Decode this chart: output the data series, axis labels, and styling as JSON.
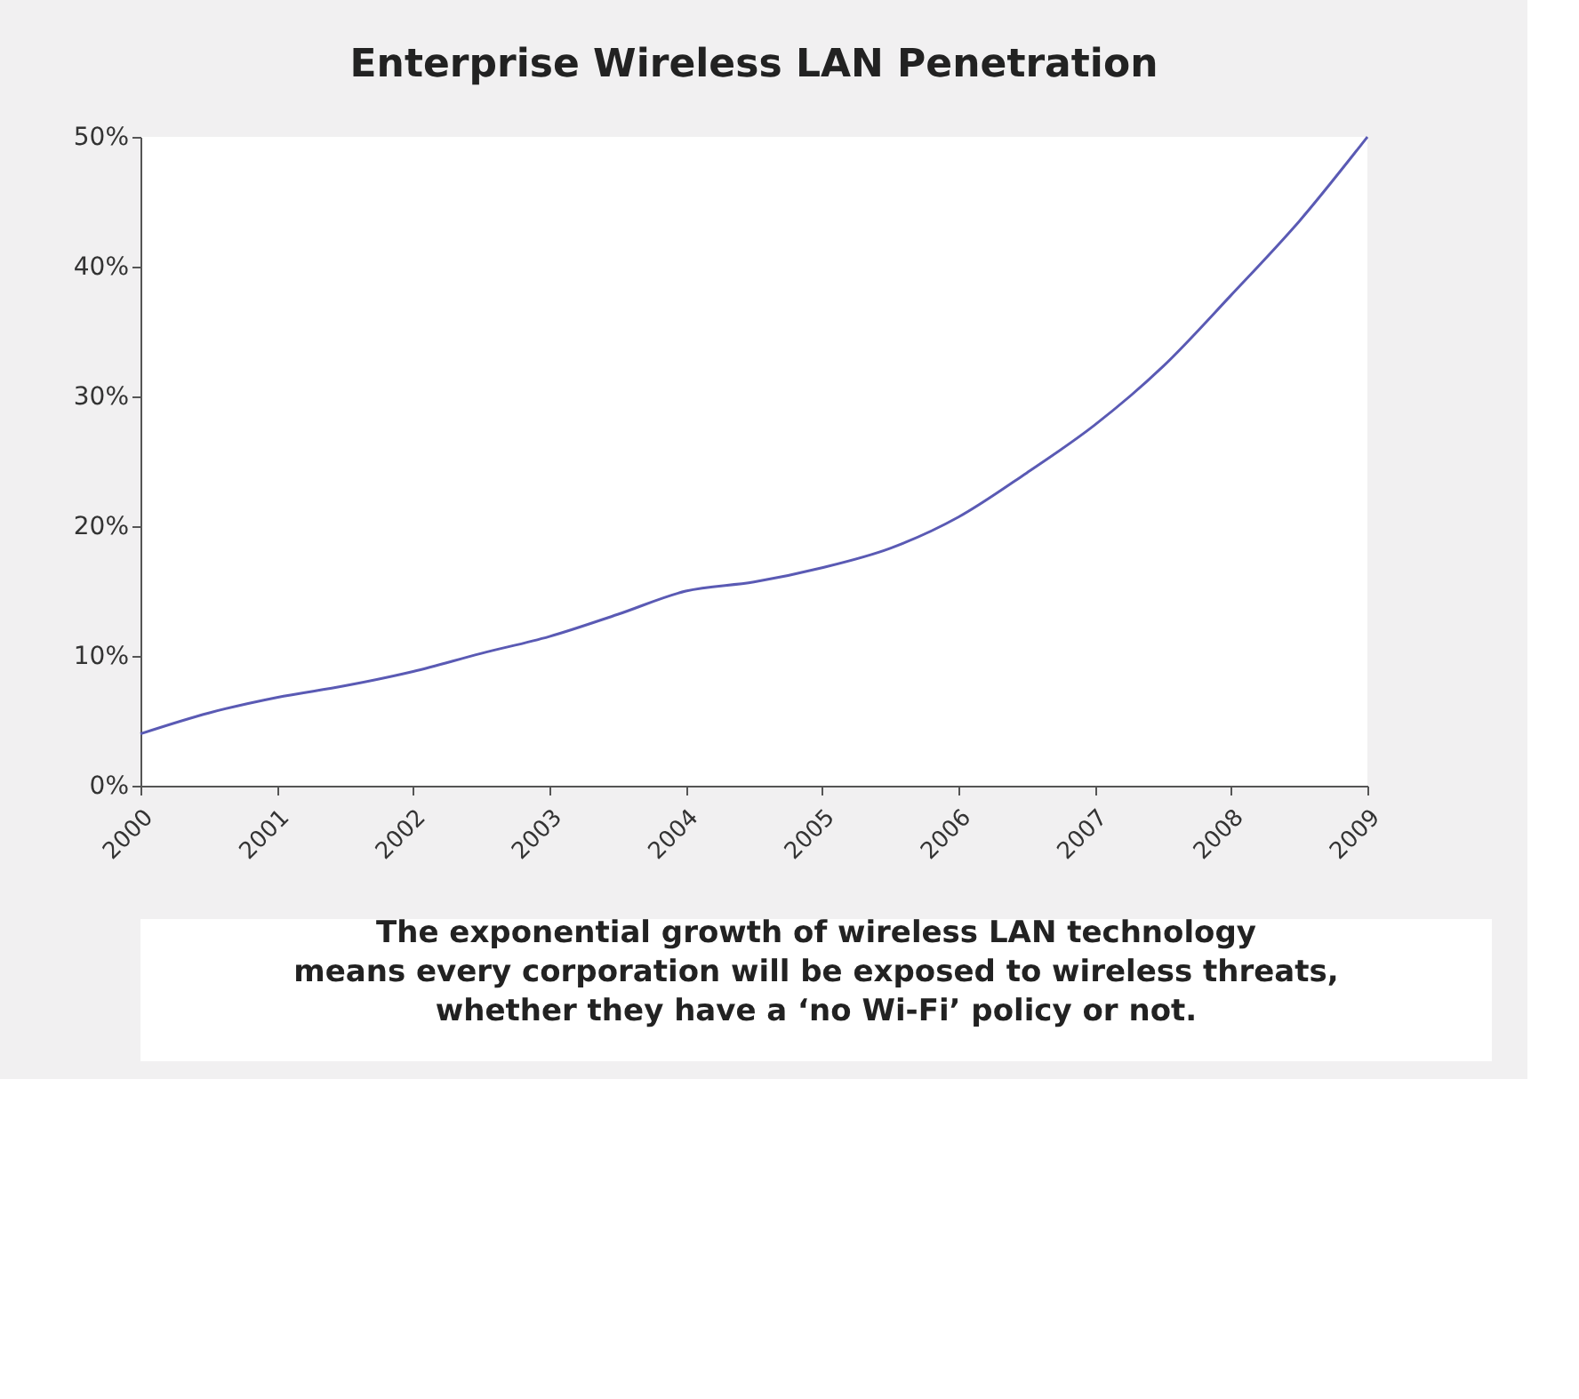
{
  "chart_data": {
    "type": "line",
    "title": "Enterprise Wireless LAN Penetration",
    "annotations": [
      "The exponential growth of wireless LAN technology\nmeans every corporation will be exposed to wireless threats,\nwhether they have a ‘no Wi-Fi’ policy or not."
    ],
    "series": [
      {
        "color": "#5a5ab4",
        "x": [
          2000,
          2000.5,
          2001,
          2001.5,
          2002,
          2002.5,
          2003,
          2003.5,
          2004,
          2004.5,
          2005,
          2005.5,
          2006,
          2006.5,
          2007,
          2007.5,
          2008,
          2008.5,
          2009
        ],
        "values": [
          4.0,
          5.6,
          6.8,
          7.7,
          8.8,
          10.2,
          11.5,
          13.2,
          15.0,
          15.7,
          16.8,
          18.3,
          20.7,
          24.1,
          27.8,
          32.3,
          37.8,
          43.5,
          50.0
        ]
      }
    ],
    "xlim": [
      2000,
      2009
    ],
    "xticks": [
      2000,
      2001,
      2002,
      2003,
      2004,
      2005,
      2006,
      2007,
      2008,
      2009
    ],
    "ylim": [
      0,
      50
    ],
    "yticks": [
      {
        "value": 0,
        "label": "0%"
      },
      {
        "value": 10,
        "label": "10%"
      },
      {
        "value": 20,
        "label": "20%"
      },
      {
        "value": 30,
        "label": "30%"
      },
      {
        "value": 40,
        "label": "40%"
      },
      {
        "value": 50,
        "label": "50%"
      }
    ],
    "grid": false,
    "legend": false,
    "marker": "none",
    "line_style": "solid"
  }
}
